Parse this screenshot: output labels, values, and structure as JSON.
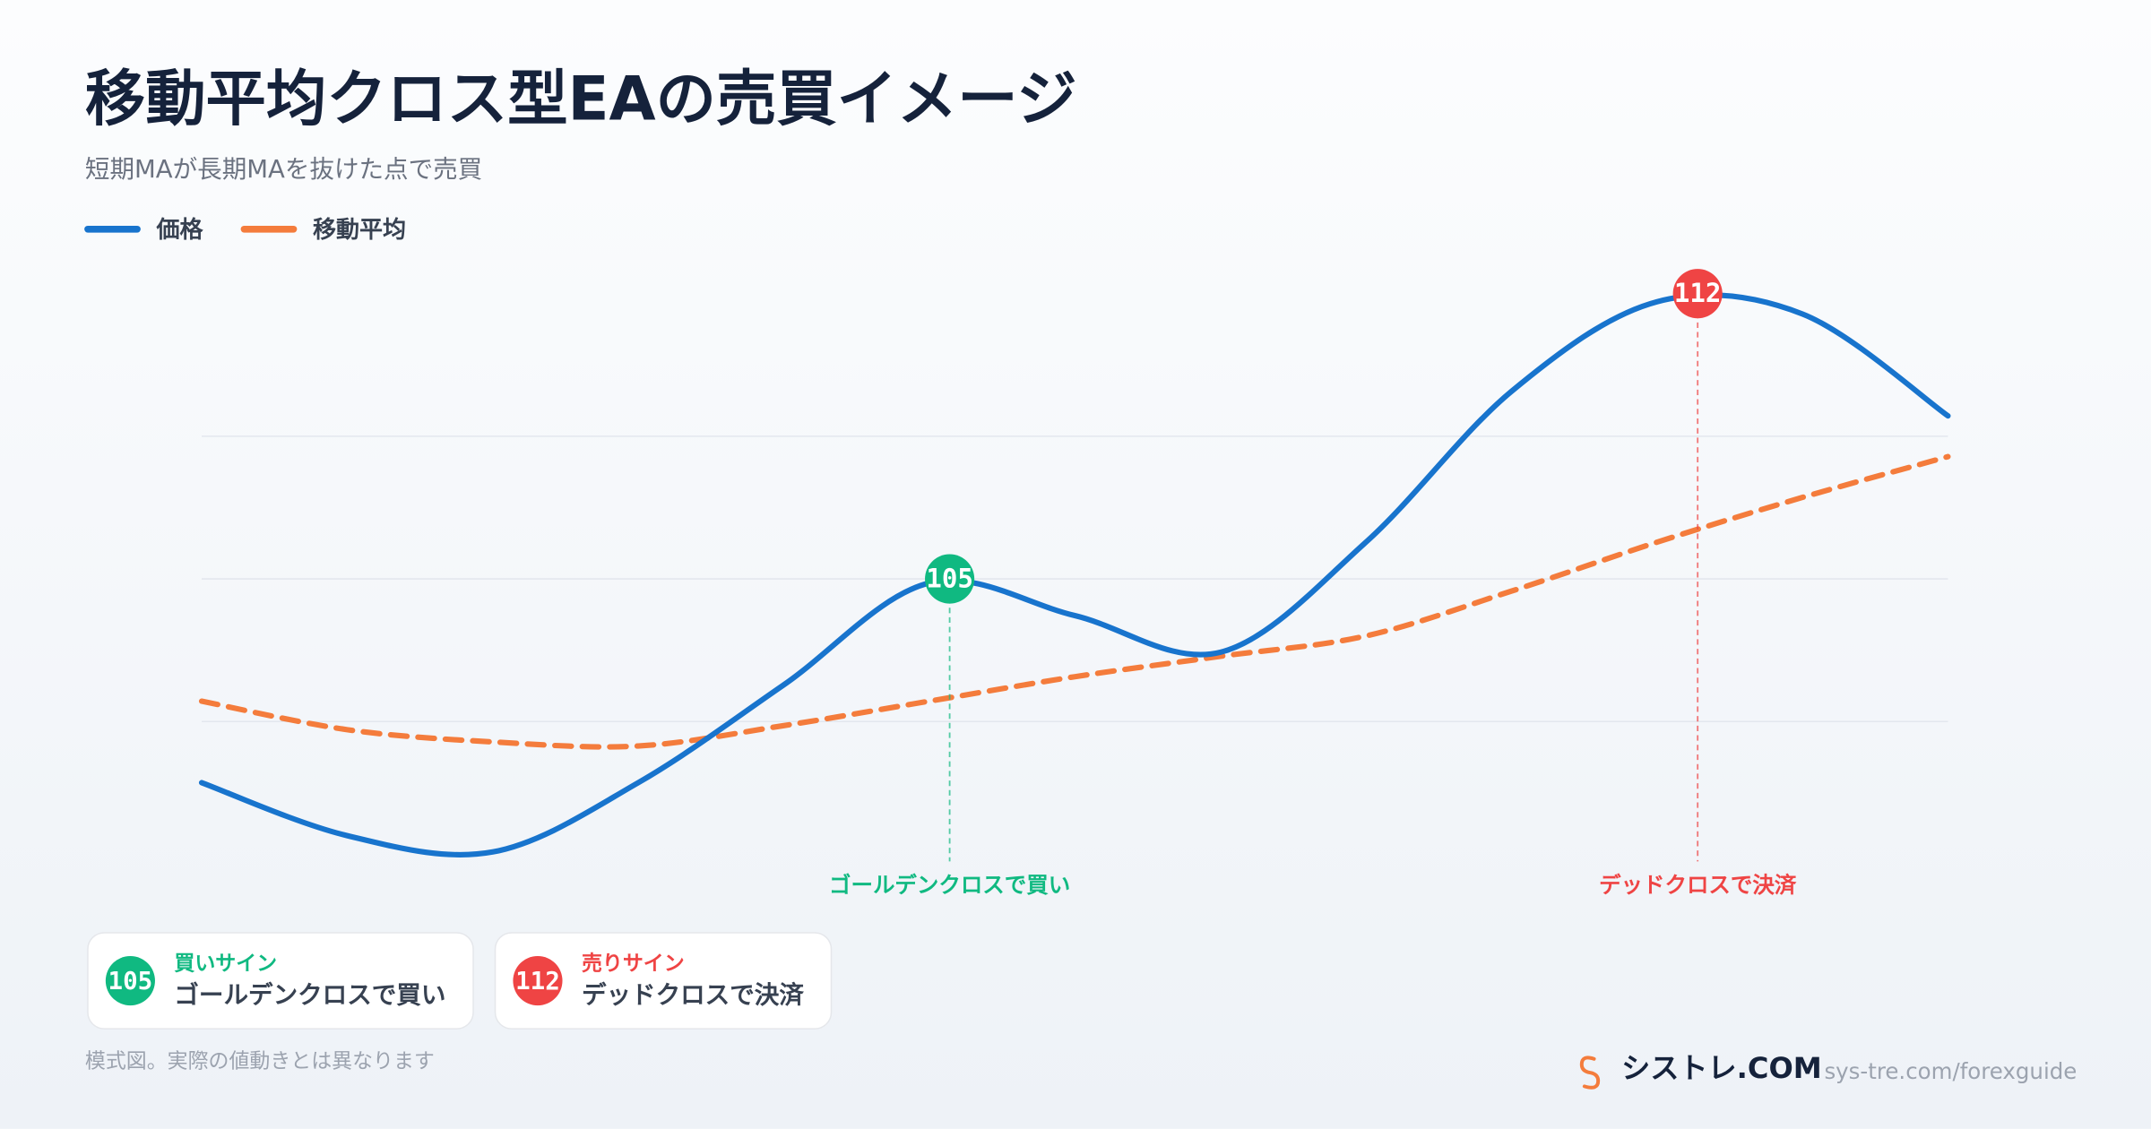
{
  "chart_data": {
    "type": "line",
    "title": "移動平均クロス型EAの売買イメージ",
    "subtitle": "短期MAが長期MAを抜けた点で売買",
    "x": [
      0,
      1,
      2,
      3,
      4,
      5,
      6,
      7,
      8,
      9,
      10,
      11,
      12
    ],
    "xlim": [
      0,
      12
    ],
    "ylim": [
      97.3,
      112.0
    ],
    "yticks": [
      101.5,
      105,
      108.5
    ],
    "grid": true,
    "series": [
      {
        "name": "価格",
        "color": "#1874cd",
        "style": "solid",
        "values": [
          100.0,
          98.7,
          98.3,
          100.0,
          102.4,
          104.9,
          104.1,
          103.2,
          105.9,
          109.6,
          111.8,
          111.5,
          109.0
        ]
      },
      {
        "name": "移動平均",
        "color": "#f47c3c",
        "style": "dashed",
        "values": [
          102.0,
          101.3,
          101.0,
          100.9,
          101.4,
          102.0,
          102.6,
          103.1,
          103.6,
          104.7,
          105.9,
          107.0,
          108.0
        ]
      }
    ],
    "annotations": [
      {
        "x": 5.14,
        "value": 105,
        "label": "ゴールデンクロスで買い",
        "color": "#10b981",
        "card_title": "買いサイン"
      },
      {
        "x": 10.28,
        "value": 112,
        "label": "デッドクロスで決済",
        "color": "#ef4444",
        "card_title": "売りサイン"
      }
    ]
  },
  "footer": {
    "note": "模式図。実際の値動きとは異なります",
    "brand": "シストレ.COM",
    "url": "sys-tre.com/forexguide"
  }
}
